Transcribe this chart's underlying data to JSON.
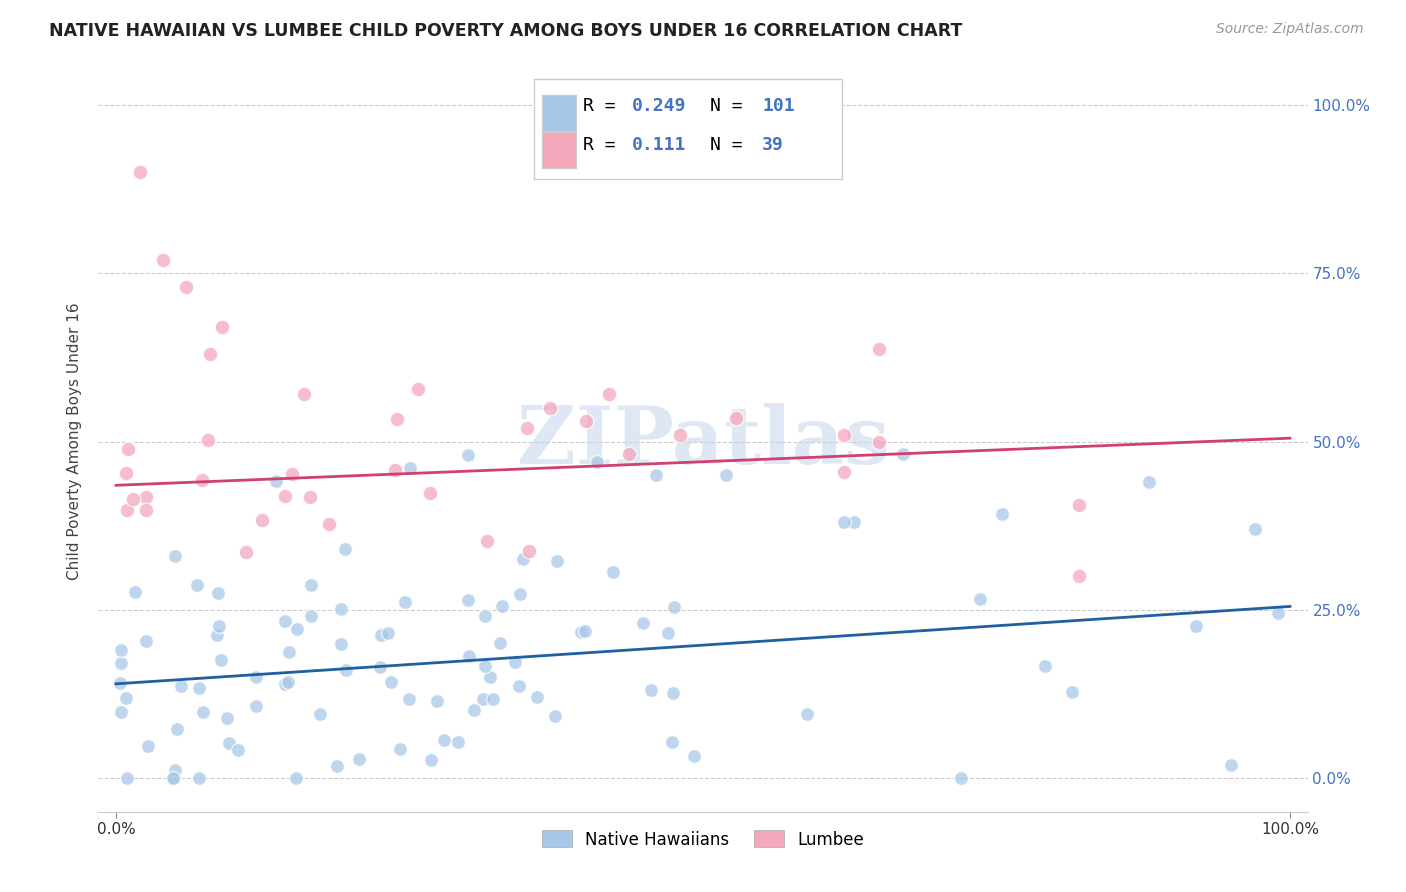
{
  "title": "NATIVE HAWAIIAN VS LUMBEE CHILD POVERTY AMONG BOYS UNDER 16 CORRELATION CHART",
  "source": "Source: ZipAtlas.com",
  "ylabel": "Child Poverty Among Boys Under 16",
  "watermark": "ZIPatlas",
  "blue_color": "#a8c8e8",
  "pink_color": "#f4a8bc",
  "trend_blue": "#2060a0",
  "trend_pink": "#d04070",
  "blue_intercept": 0.14,
  "blue_slope": 0.115,
  "pink_intercept": 0.435,
  "pink_slope": 0.07,
  "marker_size_blue": 100,
  "marker_size_pink": 110,
  "seed_blue": 7,
  "seed_pink": 13,
  "n_blue": 101,
  "n_pink": 39,
  "legend_r1": "0.249",
  "legend_n1": "101",
  "legend_r2": "0.111",
  "legend_n2": "39",
  "grid_color": "#cccccc",
  "axis_label_color": "#4472c4",
  "title_color": "#222222"
}
